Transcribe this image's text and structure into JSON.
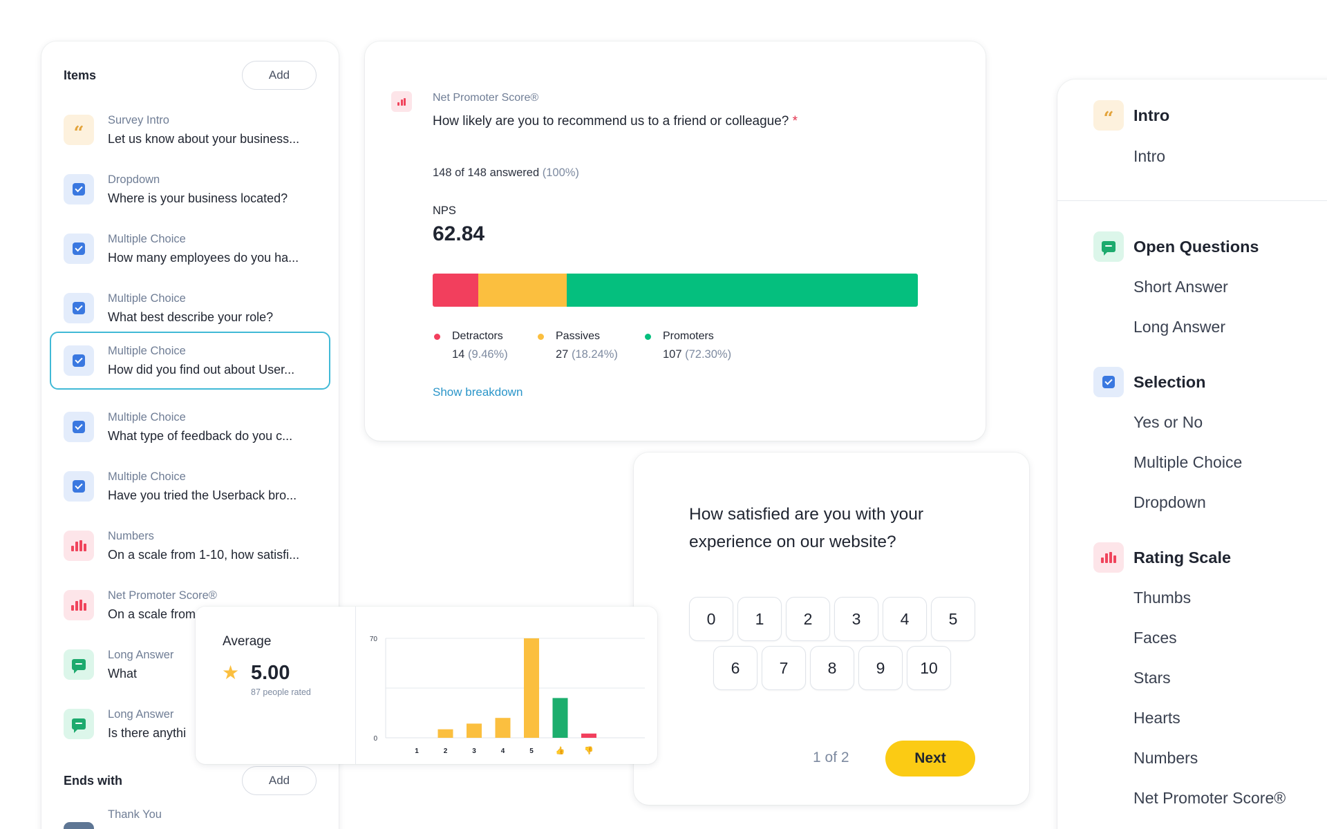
{
  "items_panel": {
    "title": "Items",
    "add_label": "Add",
    "items": [
      {
        "type": "Survey Intro",
        "question": "Let us know about your business..."
      },
      {
        "type": "Dropdown",
        "question": "Where is your business located?"
      },
      {
        "type": "Multiple Choice",
        "question": "How many employees do you ha..."
      },
      {
        "type": "Multiple Choice",
        "question": "What best describe your role?"
      },
      {
        "type": "Multiple Choice",
        "question": "How did you find out about User..."
      },
      {
        "type": "Multiple Choice",
        "question": "What type of feedback do you c..."
      },
      {
        "type": "Multiple Choice",
        "question": "Have you tried the Userback bro..."
      },
      {
        "type": "Numbers",
        "question": "On a scale from 1-10, how satisfi..."
      },
      {
        "type": "Net Promoter Score®",
        "question": "On a scale from 0-10, how likely..."
      },
      {
        "type": "Long Answer",
        "question": "What"
      },
      {
        "type": "Long Answer",
        "question": "Is there anythi"
      }
    ],
    "ends_with": {
      "title": "Ends with",
      "add_label": "Add",
      "items": [
        {
          "type": "Thank You",
          "question": ""
        }
      ]
    }
  },
  "nps_card": {
    "label": "Net Promoter Score®",
    "question": "How likely are you to recommend us to a friend or colleague?",
    "required_mark": "*",
    "answered": "148 of 148 answered",
    "answered_pct": "(100%)",
    "metric_label": "NPS",
    "metric_value": "62.84",
    "bar_fractions": {
      "detractors": 0.0946,
      "passives": 0.1824,
      "promoters": 0.723
    },
    "legend": [
      {
        "name": "Detractors",
        "count": "14",
        "pct": "(9.46%)",
        "color": "#f23f5d"
      },
      {
        "name": "Passives",
        "count": "27",
        "pct": "(18.24%)",
        "color": "#fbbf3f"
      },
      {
        "name": "Promoters",
        "count": "107",
        "pct": "(72.30%)",
        "color": "#05bf7e"
      }
    ],
    "breakdown_link": "Show breakdown"
  },
  "rating_card": {
    "question_line1": "How satisfied are you with your",
    "question_line2": "experience on our website?",
    "options": [
      "0",
      "1",
      "2",
      "3",
      "4",
      "5",
      "6",
      "7",
      "8",
      "9",
      "10"
    ],
    "pager": "1 of 2",
    "next_label": "Next"
  },
  "average_card": {
    "label": "Average",
    "value": "5.00",
    "sub": "87 people rated",
    "chart_data": {
      "type": "bar",
      "categories": [
        "1",
        "2",
        "3",
        "4",
        "5",
        "thumbs-up",
        "thumbs-down"
      ],
      "values": [
        0,
        6,
        10,
        14,
        70,
        28,
        3
      ],
      "colors": [
        "#fbbf3f",
        "#fbbf3f",
        "#fbbf3f",
        "#fbbf3f",
        "#fbbf3f",
        "#1cae6d",
        "#f23f5d"
      ],
      "ylim": [
        0,
        70
      ],
      "yticks": [
        "0",
        "70"
      ],
      "grid": true
    }
  },
  "categories_panel": {
    "groups": [
      {
        "title": "Intro",
        "icon": "quote-icon",
        "items": [
          "Intro"
        ]
      },
      {
        "title": "Open Questions",
        "icon": "chat-icon",
        "items": [
          "Short Answer",
          "Long Answer"
        ]
      },
      {
        "title": "Selection",
        "icon": "checkbox-icon",
        "items": [
          "Yes or No",
          "Multiple Choice",
          "Dropdown"
        ]
      },
      {
        "title": "Rating Scale",
        "icon": "bar-chart-icon",
        "items": [
          "Thumbs",
          "Faces",
          "Stars",
          "Hearts",
          "Numbers",
          "Net Promoter Score®"
        ]
      }
    ]
  }
}
